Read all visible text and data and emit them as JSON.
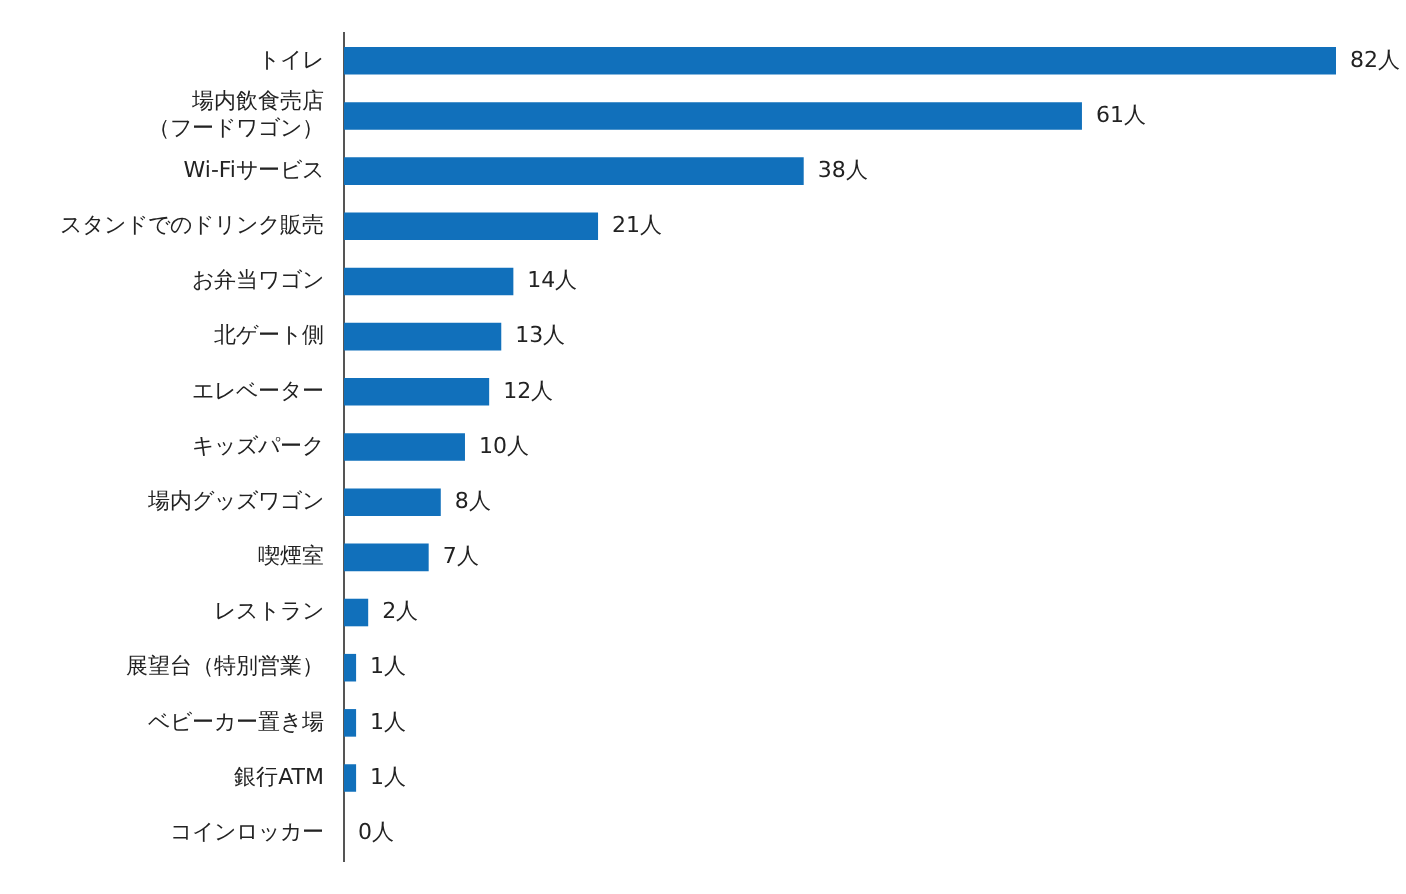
{
  "chart_data": {
    "type": "bar",
    "orientation": "horizontal",
    "color": "#1170bb",
    "legend": false,
    "tick_labels": "y",
    "categories": [
      "トイレ",
      "場内飲食売店（フードワゴン）",
      "Wi-Fiサービス",
      "スタンドでのドリンク販売",
      "お弁当ワゴン",
      "北ゲート側",
      "エレベーター",
      "キッズパーク",
      "場内グッズワゴン",
      "喫煙室",
      "レストラン",
      "展望台（特別営業）",
      "ベビーカー置き場",
      "銀行ATM",
      "コインロッカー"
    ],
    "values": [
      82,
      61,
      38,
      21,
      14,
      13,
      12,
      10,
      8,
      7,
      2,
      1,
      1,
      1,
      0
    ],
    "value_labels": [
      "82人",
      "61人",
      "38人",
      "21人",
      "14人",
      "13人",
      "12人",
      "10人",
      "8人",
      "7人",
      "2人",
      "1人",
      "1人",
      "1人",
      "0人"
    ]
  }
}
